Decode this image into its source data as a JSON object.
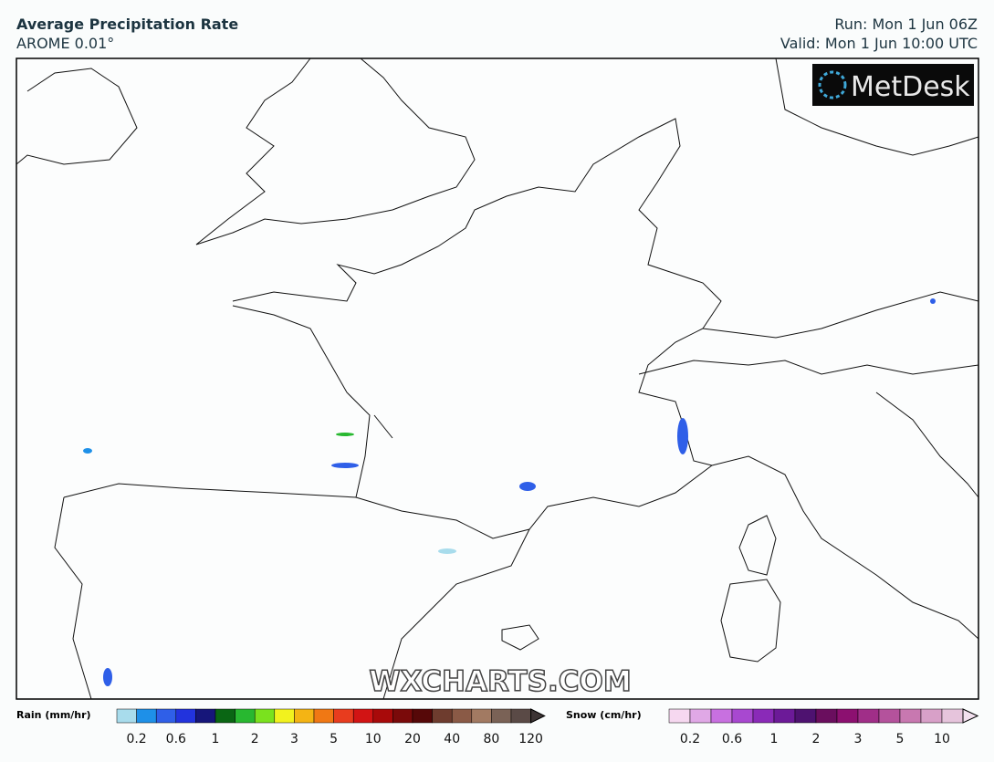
{
  "header": {
    "title": "Average Precipitation Rate",
    "model": "AROME 0.01°",
    "run": "Run: Mon 1 Jun 06Z",
    "valid": "Valid: Mon 1 Jun 10:00 UTC"
  },
  "logo": "MetDesk",
  "watermark": "WXCHARTS.COM",
  "legends": [
    {
      "label": "Rain (mm/hr)",
      "colors": [
        "#a8dcec",
        "#1e90e8",
        "#2f5fe8",
        "#2233dd",
        "#16167a",
        "#0a6614",
        "#28b830",
        "#7ae21e",
        "#f2f21e",
        "#f4b414",
        "#f07814",
        "#e83c1e",
        "#d21414",
        "#a80a0a",
        "#7a0a0a",
        "#560808",
        "#6e3c2e",
        "#8a5a46",
        "#a27a62",
        "#7a6256",
        "#5a4a46",
        "#3c3434"
      ],
      "ticks": [
        "0.2",
        "0.6",
        "1",
        "2",
        "3",
        "5",
        "10",
        "20",
        "40",
        "80",
        "120"
      ]
    },
    {
      "label": "Snow (cm/hr)",
      "colors": [
        "#f6d8f0",
        "#e0a8e6",
        "#c870e0",
        "#a848d0",
        "#8a2ab8",
        "#6c1a98",
        "#4e1270",
        "#6a0e5e",
        "#8c1070",
        "#a02e88",
        "#b4529c",
        "#c878b0",
        "#d8a0c8",
        "#e6c4dc",
        "#f2e0ee"
      ],
      "ticks": [
        "0.2",
        "0.6",
        "1",
        "2",
        "3",
        "5",
        "10"
      ]
    }
  ]
}
